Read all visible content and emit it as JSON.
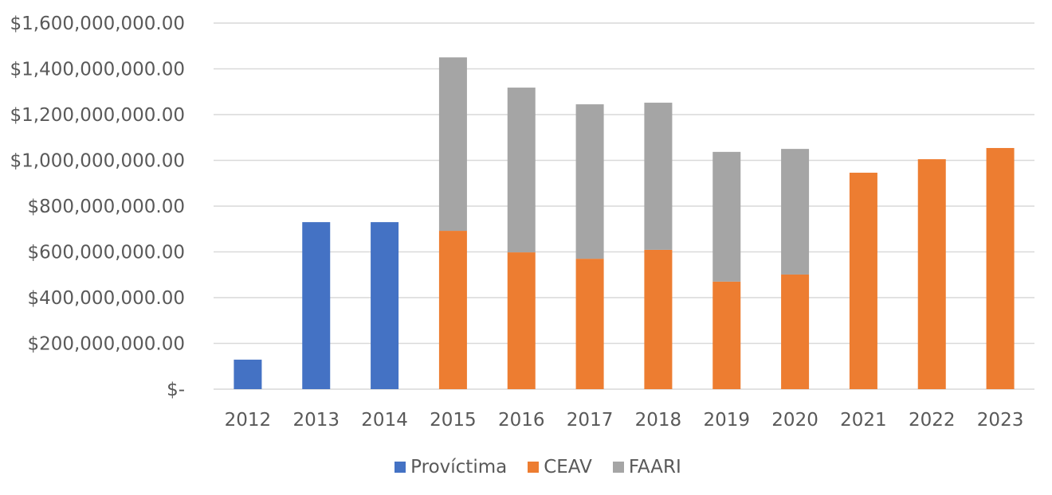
{
  "chart_data": {
    "type": "bar",
    "stacked": true,
    "title": "",
    "xlabel": "",
    "ylabel": "",
    "categories": [
      "2012",
      "2013",
      "2014",
      "2015",
      "2016",
      "2017",
      "2018",
      "2019",
      "2020",
      "2021",
      "2022",
      "2023"
    ],
    "series": [
      {
        "name": "Províctima",
        "color": "#4472C4",
        "values": [
          129000000,
          730000000,
          730000000,
          0,
          0,
          0,
          0,
          0,
          0,
          0,
          0,
          0
        ]
      },
      {
        "name": "CEAV",
        "color": "#ED7D31",
        "values": [
          0,
          0,
          0,
          692000000,
          598000000,
          570000000,
          609000000,
          470000000,
          501000000,
          946000000,
          1005000000,
          1054000000
        ]
      },
      {
        "name": "FAARI",
        "color": "#A5A5A5",
        "values": [
          0,
          0,
          0,
          758000000,
          720000000,
          675000000,
          643000000,
          567000000,
          549000000,
          0,
          0,
          0
        ]
      }
    ],
    "ylim": [
      0,
      1600000000
    ],
    "ytick_values": [
      0,
      200000000,
      400000000,
      600000000,
      800000000,
      1000000000,
      1200000000,
      1400000000,
      1600000000
    ],
    "ytick_labels": [
      "$-",
      "$200,000,000.00",
      "$400,000,000.00",
      "$600,000,000.00",
      "$800,000,000.00",
      "$1,000,000,000.00",
      "$1,200,000,000.00",
      "$1,400,000,000.00",
      "$1,600,000,000.00"
    ],
    "grid": true,
    "legend_position": "bottom"
  }
}
